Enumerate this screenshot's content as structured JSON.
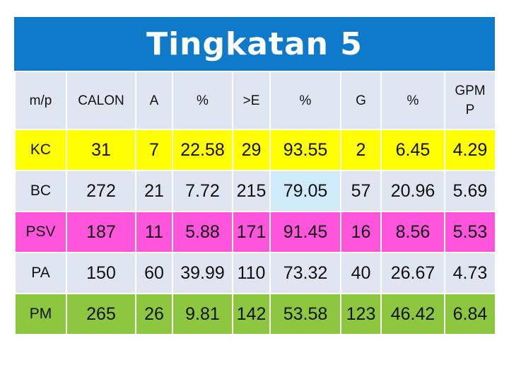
{
  "title": "Tingkatan 5",
  "headers": [
    "m/p",
    "CALON",
    "A",
    "%",
    ">E",
    "%",
    "G",
    "%",
    "GPM P"
  ],
  "rows": [
    {
      "cells": [
        "KC",
        "31",
        "7",
        "22.58",
        "29",
        "93.55",
        "2",
        "6.45",
        "4.29"
      ]
    },
    {
      "cells": [
        "BC",
        "272",
        "21",
        "7.72",
        "215",
        "79.05",
        "57",
        "20.96",
        "5.69"
      ]
    },
    {
      "cells": [
        "PSV",
        "187",
        "11",
        "5.88",
        "171",
        "91.45",
        "16",
        "8.56",
        "5.53"
      ]
    },
    {
      "cells": [
        "PA",
        "150",
        "60",
        "39.99",
        "110",
        "73.32",
        "40",
        "26.67",
        "4.73"
      ]
    },
    {
      "cells": [
        "PM",
        "265",
        "26",
        "9.81",
        "142",
        "53.58",
        "123",
        "46.42",
        "6.84"
      ]
    }
  ],
  "colors": {
    "title_bar": "#0f7ac9",
    "header_row": "#dfe6f1",
    "row_backgrounds": [
      "#ffff00",
      "#dfe6f1",
      "#ff55dd",
      "#dfe6f1",
      "#8dc63f"
    ],
    "highlight_cell": "#cfeaf8"
  }
}
